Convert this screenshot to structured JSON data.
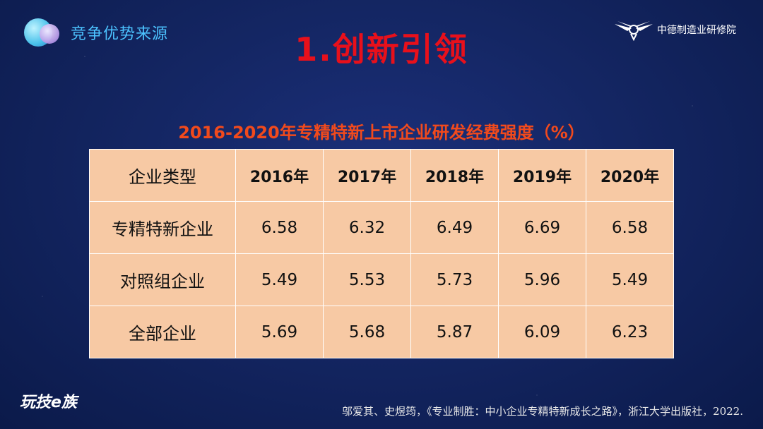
{
  "header": {
    "section_title": "竞争优势来源",
    "main_title": "1.创新引领",
    "logo_text": "中德制造业研修院"
  },
  "table": {
    "title": "2016-2020年专精特新上市企业研发经费强度（%）",
    "columns": [
      "企业类型",
      "2016年",
      "2017年",
      "2018年",
      "2019年",
      "2020年"
    ],
    "rows": [
      {
        "label": "专精特新企业",
        "values": [
          "6.58",
          "6.32",
          "6.49",
          "6.69",
          "6.58"
        ]
      },
      {
        "label": "对照组企业",
        "values": [
          "5.49",
          "5.53",
          "5.73",
          "5.96",
          "5.49"
        ]
      },
      {
        "label": "全部企业",
        "values": [
          "5.69",
          "5.68",
          "5.87",
          "6.09",
          "6.23"
        ]
      }
    ]
  },
  "footer": {
    "watermark": "玩技e族",
    "citation": "邬爱其、史煜筠，《专业制胜：中小企业专精特新成长之路》，浙江大学出版社，2022."
  },
  "colors": {
    "title_red": "#e8101b",
    "table_title_orange": "#f24a1c",
    "section_blue": "#4cc3ff",
    "table_bg": "#f7c9a4"
  }
}
